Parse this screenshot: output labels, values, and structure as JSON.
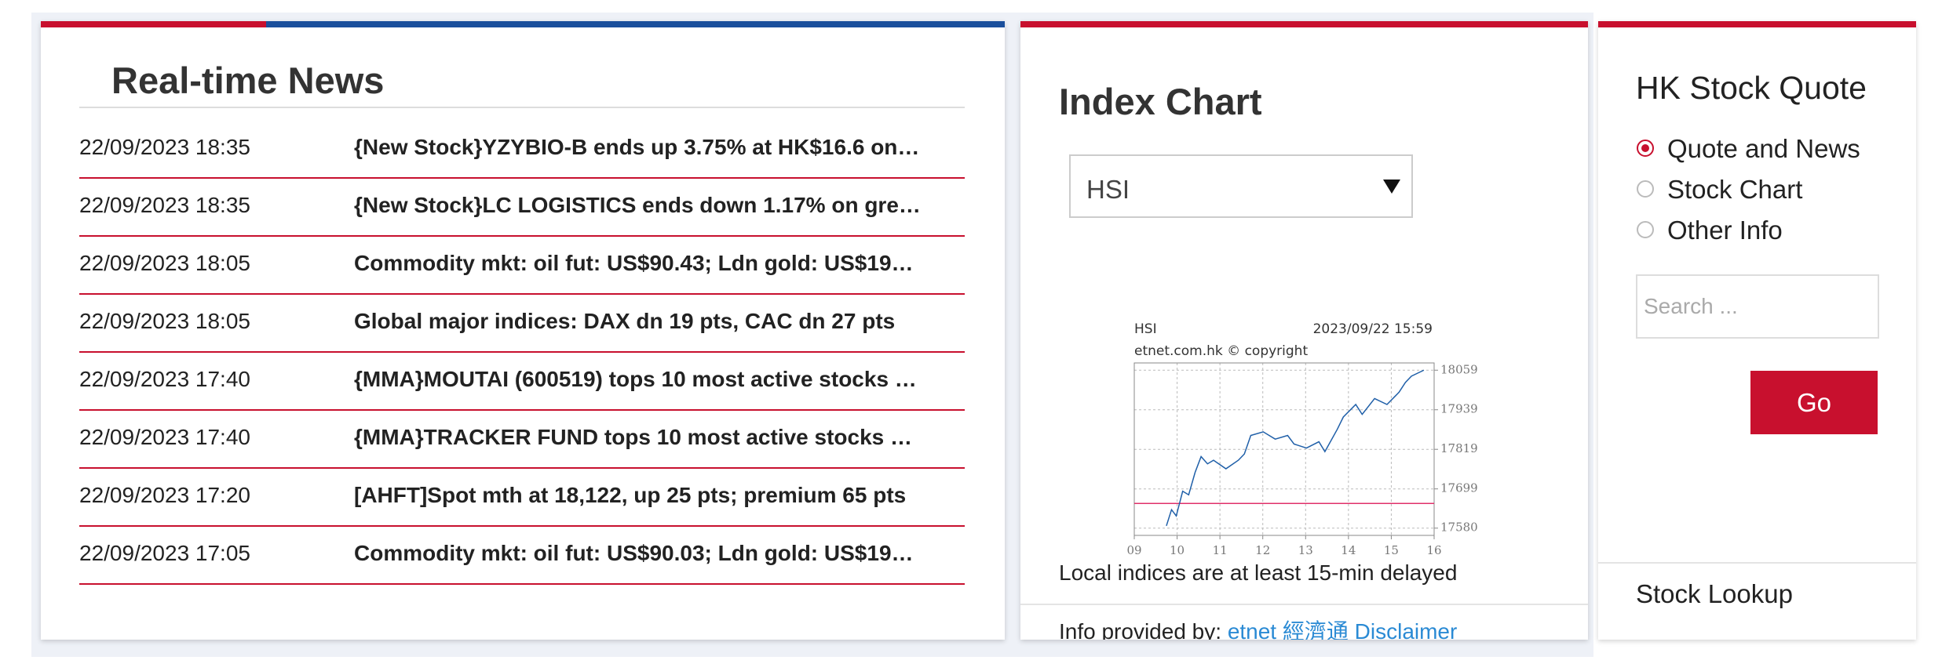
{
  "news": {
    "title": "Real-time News",
    "items": [
      {
        "time": "22/09/2023 18:35",
        "headline": "{New Stock}YZYBIO-B ends up 3.75% at HK$16.6 on…"
      },
      {
        "time": "22/09/2023 18:35",
        "headline": "{New Stock}LC LOGISTICS ends down 1.17% on gre…"
      },
      {
        "time": "22/09/2023 18:05",
        "headline": "Commodity mkt: oil fut: US$90.43; Ldn gold: US$19…"
      },
      {
        "time": "22/09/2023 18:05",
        "headline": "Global major indices: DAX dn 19 pts, CAC dn 27 pts"
      },
      {
        "time": "22/09/2023 17:40",
        "headline": "{MMA}MOUTAI (600519) tops 10 most active stocks …"
      },
      {
        "time": "22/09/2023 17:40",
        "headline": "{MMA}TRACKER FUND tops 10 most active stocks …"
      },
      {
        "time": "22/09/2023 17:20",
        "headline": "[AHFT]Spot mth at 18,122, up 25 pts; premium 65 pts"
      },
      {
        "time": "22/09/2023 17:05",
        "headline": "Commodity mkt: oil fut: US$90.03; Ldn gold: US$19…"
      }
    ]
  },
  "index_panel": {
    "title": "Index Chart",
    "selected_index": "HSI",
    "note": "Local indices are at least 15-min delayed",
    "info_label": "Info provided by:",
    "info_links": [
      "etnet 經濟通",
      "Disclaimer"
    ]
  },
  "chart_data": {
    "type": "line",
    "title": "HSI",
    "subtitle": "2023/09/22 15:59",
    "annotation": "etnet.com.hk © copyright",
    "color": "#1f5fa8",
    "x": [
      9.75,
      9.87,
      9.98,
      10.13,
      10.27,
      10.42,
      10.56,
      10.71,
      10.85,
      11.14,
      11.43,
      11.57,
      11.72,
      12.01,
      12.29,
      12.58,
      12.73,
      13.02,
      13.31,
      13.45,
      13.74,
      13.88,
      14.17,
      14.32,
      14.61,
      14.9,
      15.18,
      15.33,
      15.47,
      15.76
    ],
    "values": [
      17587,
      17636,
      17617,
      17692,
      17681,
      17749,
      17797,
      17775,
      17786,
      17760,
      17786,
      17805,
      17861,
      17872,
      17850,
      17861,
      17835,
      17823,
      17842,
      17812,
      17880,
      17917,
      17955,
      17925,
      17973,
      17955,
      17992,
      18022,
      18041,
      18059
    ],
    "reference_line": 17655,
    "reference_color": "#e0306a",
    "xlim": [
      9,
      16
    ],
    "ylim": [
      17558,
      18081
    ],
    "xticks": [
      {
        "value": 9,
        "label": "09"
      },
      10,
      11,
      12,
      13,
      14,
      15,
      16
    ],
    "yticks": [
      17580,
      17699,
      17819,
      17939,
      18059
    ],
    "grid": true
  },
  "stock_quote": {
    "title": "HK Stock Quote",
    "options": [
      "Quote and News",
      "Stock Chart",
      "Other Info"
    ],
    "search_placeholder": "Search ...",
    "button": "Go",
    "footer": "Stock Lookup"
  }
}
